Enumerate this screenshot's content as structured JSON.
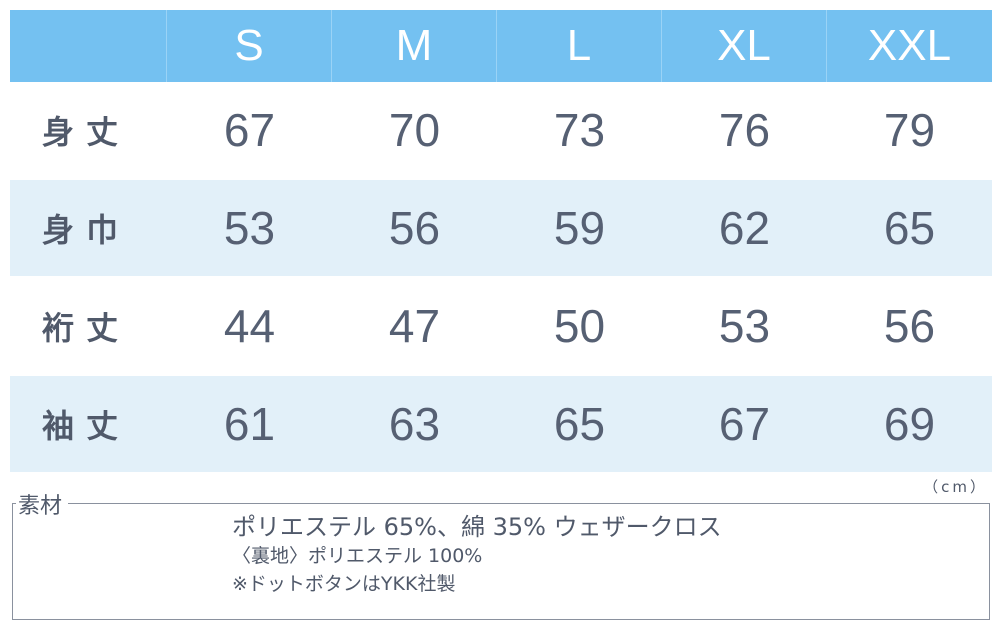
{
  "sizes": [
    "S",
    "M",
    "L",
    "XL",
    "XXL"
  ],
  "rows": [
    {
      "label": "身丈",
      "values": [
        "67",
        "70",
        "73",
        "76",
        "79"
      ]
    },
    {
      "label": "身巾",
      "values": [
        "53",
        "56",
        "59",
        "62",
        "65"
      ]
    },
    {
      "label": "裄丈",
      "values": [
        "44",
        "47",
        "50",
        "53",
        "56"
      ]
    },
    {
      "label": "袖丈",
      "values": [
        "61",
        "63",
        "65",
        "67",
        "69"
      ]
    }
  ],
  "unit": "（cm）",
  "material": {
    "title": "素材",
    "line1": "ポリエステル 65%、綿 35% ウェザークロス",
    "line2": "〈裏地〉ポリエステル 100%",
    "line3": "※ドットボタンはYKK社製"
  },
  "colors": {
    "header_bg": "#74c1f1",
    "alt_row_bg": "#e2f0f9",
    "text": "#50596a"
  }
}
